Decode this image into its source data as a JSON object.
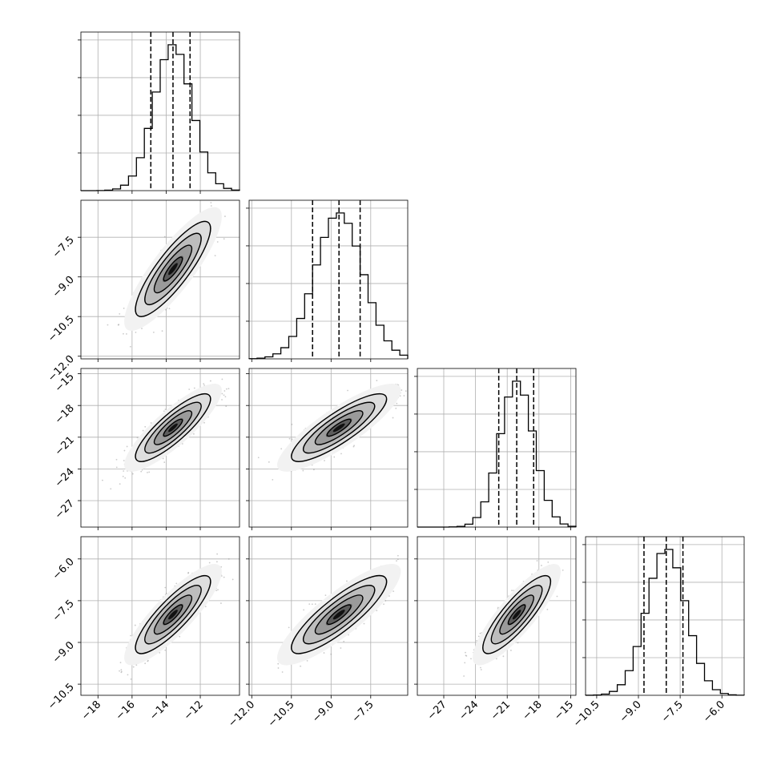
{
  "chart_data": {
    "type": "scatter",
    "title": "",
    "grid": true,
    "parameters": [
      {
        "range": [
          -19,
          -9.7
        ],
        "ticks": [
          -18,
          -16,
          -14,
          -12
        ],
        "tick_labels": [
          "−18",
          "−16",
          "−14",
          "−12"
        ],
        "median": -13.6,
        "q16": -14.9,
        "q84": -12.6,
        "sigma": 1.1
      },
      {
        "range": [
          -12.1,
          -6.1
        ],
        "ticks": [
          -12.0,
          -10.5,
          -9.0,
          -7.5
        ],
        "tick_labels": [
          "−12.0",
          "−10.5",
          "−9.0",
          "−7.5"
        ],
        "median": -8.7,
        "q16": -9.7,
        "q84": -7.9,
        "sigma": 0.9
      },
      {
        "range": [
          -29.5,
          -14.5
        ],
        "ticks": [
          -27,
          -24,
          -21,
          -18,
          -15
        ],
        "tick_labels": [
          "−27",
          "−24",
          "−21",
          "−18",
          "−15"
        ],
        "median": -20.1,
        "q16": -21.8,
        "q84": -18.5,
        "sigma": 1.6
      },
      {
        "range": [
          -10.9,
          -5.2
        ],
        "ticks": [
          -10.5,
          -9.0,
          -7.5,
          -6.0
        ],
        "tick_labels": [
          "−10.5",
          "−9.0",
          "−7.5",
          "−6.0"
        ],
        "median": -8.0,
        "q16": -8.8,
        "q84": -7.4,
        "sigma": 0.7
      }
    ],
    "correlation": 0.85
  }
}
